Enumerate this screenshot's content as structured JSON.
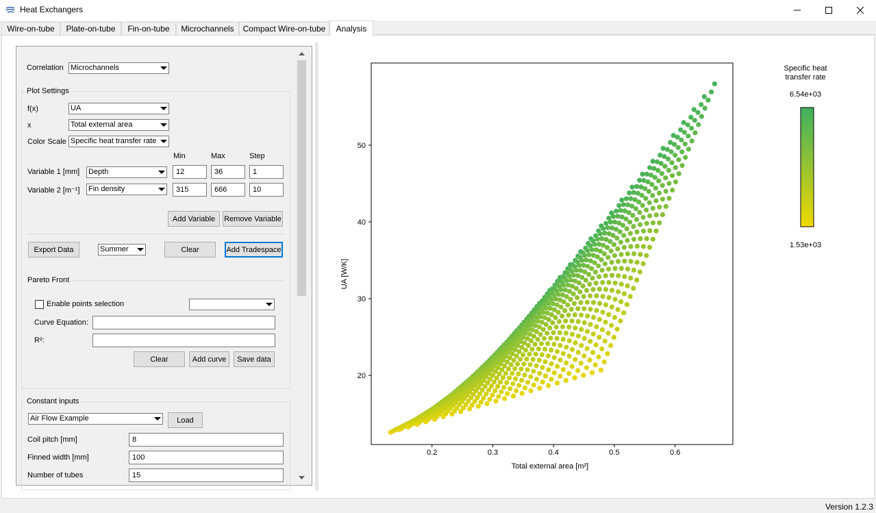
{
  "window": {
    "title": "Heat Exchangers",
    "icon": "app-logo-icon",
    "controls": [
      "minimize-icon",
      "maximize-icon",
      "close-icon"
    ]
  },
  "tabs": [
    {
      "label": "Wire-on-tube",
      "active": false
    },
    {
      "label": "Plate-on-tube",
      "active": false
    },
    {
      "label": "Fin-on-tube",
      "active": false
    },
    {
      "label": "Microchannels",
      "active": false
    },
    {
      "label": "Compact Wire-on-tube",
      "active": false
    },
    {
      "label": "Analysis",
      "active": true
    }
  ],
  "left": {
    "correlation": {
      "label": "Correlation",
      "value": "Microchannels"
    },
    "plot_settings": {
      "title": "Plot Settings",
      "fx": {
        "label": "f(x)",
        "value": "UA"
      },
      "x": {
        "label": "x",
        "value": "Total external area"
      },
      "color_scale": {
        "label": "Color Scale",
        "value": "Specific heat transfer rate"
      },
      "headers": {
        "min": "Min",
        "max": "Max",
        "step": "Step"
      },
      "variables": [
        {
          "label": "Variable 1 [mm]",
          "param": "Depth",
          "min": "12",
          "max": "36",
          "step": "1"
        },
        {
          "label": "Variable 2 [m⁻¹]",
          "param": "Fin density",
          "min": "315",
          "max": "666",
          "step": "10"
        }
      ],
      "add_variable": "Add Variable",
      "remove_variable": "Remove Variable"
    },
    "actions": {
      "export": "Export Data",
      "season": "Summer",
      "clear": "Clear",
      "add_tradespace": "Add Tradespace"
    },
    "pareto": {
      "title": "Pareto Front",
      "enable_selection": "Enable points selection",
      "selection_value": "",
      "curve_equation_label": "Curve Equation:",
      "curve_equation_value": "",
      "r2_label": "R²:",
      "r2_value": "",
      "clear": "Clear",
      "add_curve": "Add curve",
      "save_data": "Save data"
    },
    "constant_inputs": {
      "title": "Constant inputs",
      "preset": "Air Flow Example",
      "load": "Load",
      "fields": [
        {
          "label": "Coil pitch [mm]",
          "value": "8"
        },
        {
          "label": "Finned width [mm]",
          "value": "100"
        },
        {
          "label": "Number of tubes",
          "value": "15"
        }
      ]
    }
  },
  "chart_data": {
    "type": "scatter",
    "xlabel": "Total external area [m²]",
    "ylabel": "UA [W/K]",
    "xticks": [
      "0.2",
      "0.3",
      "0.4",
      "0.5",
      "0.6"
    ],
    "yticks": [
      "20",
      "30",
      "40",
      "50"
    ],
    "xlim": [
      0.1,
      0.695
    ],
    "ylim": [
      11,
      60.7
    ],
    "colorbar": {
      "title": "Specific heat transfer rate",
      "max_label": "6.54e+03",
      "min_label": "1.53e+03",
      "max": 6540,
      "min": 1530,
      "color_low": "#f0d800",
      "color_high": "#3fb060"
    },
    "grid": {
      "rows": 25,
      "cols": 36,
      "corners": {
        "row0_col0": [
          0.132,
          12.6
        ],
        "row0_colN": [
          0.258,
          17.6
        ],
        "rowN_col0": [
          0.478,
          20.7
        ],
        "rowN_colN": [
          0.665,
          58.0
        ]
      }
    }
  },
  "status": {
    "version": "Version 1.2.3"
  }
}
